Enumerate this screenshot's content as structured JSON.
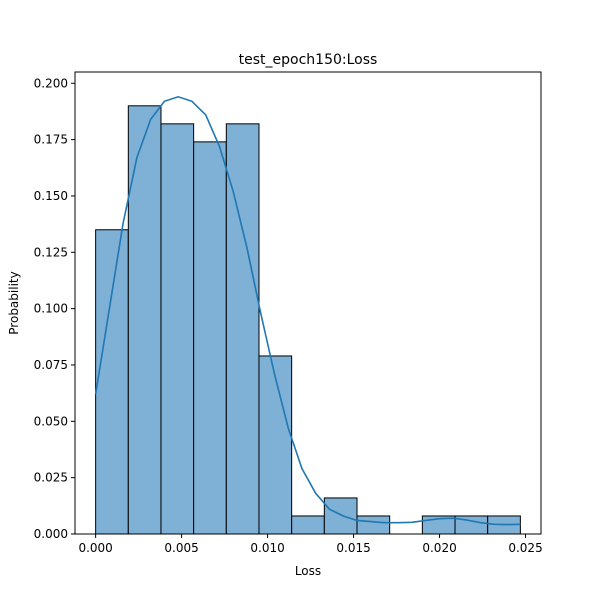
{
  "chart_data": {
    "type": "bar",
    "title": "test_epoch150:Loss",
    "xlabel": "Loss",
    "ylabel": "Probability",
    "xlim": [
      -0.0012,
      0.0259
    ],
    "ylim": [
      0.0,
      0.205
    ],
    "xticks": [
      0.0,
      0.005,
      0.01,
      0.015,
      0.02,
      0.025
    ],
    "xtick_labels": [
      "0.000",
      "0.005",
      "0.010",
      "0.015",
      "0.020",
      "0.025"
    ],
    "yticks": [
      0.0,
      0.025,
      0.05,
      0.075,
      0.1,
      0.125,
      0.15,
      0.175,
      0.2
    ],
    "ytick_labels": [
      "0.000",
      "0.025",
      "0.050",
      "0.075",
      "0.100",
      "0.125",
      "0.150",
      "0.175",
      "0.200"
    ],
    "bins": [
      {
        "x0": 0.0,
        "x1": 0.0019,
        "value": 0.135
      },
      {
        "x0": 0.0019,
        "x1": 0.0038,
        "value": 0.19
      },
      {
        "x0": 0.0038,
        "x1": 0.0057,
        "value": 0.182
      },
      {
        "x0": 0.0057,
        "x1": 0.0076,
        "value": 0.174
      },
      {
        "x0": 0.0076,
        "x1": 0.0095,
        "value": 0.182
      },
      {
        "x0": 0.0095,
        "x1": 0.0114,
        "value": 0.079
      },
      {
        "x0": 0.0114,
        "x1": 0.0133,
        "value": 0.008
      },
      {
        "x0": 0.0133,
        "x1": 0.0152,
        "value": 0.016
      },
      {
        "x0": 0.0152,
        "x1": 0.0171,
        "value": 0.008
      },
      {
        "x0": 0.0171,
        "x1": 0.019,
        "value": 0.0
      },
      {
        "x0": 0.019,
        "x1": 0.0209,
        "value": 0.008
      },
      {
        "x0": 0.0209,
        "x1": 0.0228,
        "value": 0.008
      },
      {
        "x0": 0.0228,
        "x1": 0.0247,
        "value": 0.008
      }
    ],
    "kde": {
      "x": [
        0.0,
        0.0008,
        0.0016,
        0.0024,
        0.0032,
        0.004,
        0.0048,
        0.0056,
        0.0064,
        0.0072,
        0.008,
        0.0088,
        0.0096,
        0.0104,
        0.0112,
        0.012,
        0.0128,
        0.0136,
        0.0144,
        0.0152,
        0.016,
        0.0168,
        0.0176,
        0.0184,
        0.0192,
        0.02,
        0.0208,
        0.0216,
        0.0224,
        0.0232,
        0.024,
        0.0247
      ],
      "y": [
        0.062,
        0.1,
        0.138,
        0.167,
        0.184,
        0.192,
        0.194,
        0.192,
        0.186,
        0.172,
        0.152,
        0.127,
        0.098,
        0.071,
        0.047,
        0.029,
        0.018,
        0.011,
        0.008,
        0.006,
        0.0055,
        0.005,
        0.005,
        0.0052,
        0.006,
        0.0068,
        0.007,
        0.0062,
        0.005,
        0.0043,
        0.0042,
        0.0043
      ]
    },
    "grid": false,
    "colors": {
      "bar_fill": "#7fb0d5",
      "bar_edge": "#000000",
      "kde_line": "#1f77b4"
    }
  }
}
